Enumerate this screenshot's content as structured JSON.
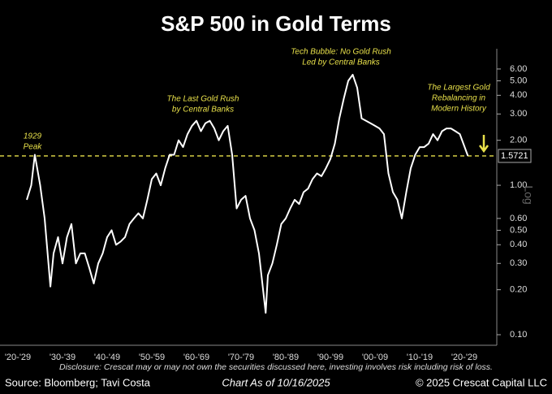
{
  "chart_data": {
    "type": "line",
    "title": "S&P 500 in Gold Terms",
    "x": [
      1927,
      1928,
      1928.8,
      1930,
      1931,
      1932.3,
      1933,
      1934,
      1935,
      1936,
      1937,
      1938,
      1939,
      1940,
      1941,
      1942,
      1943,
      1944,
      1945,
      1946,
      1947,
      1948,
      1949,
      1950,
      1951,
      1952,
      1953,
      1954,
      1955,
      1956,
      1957,
      1958,
      1959,
      1960,
      1961,
      1962,
      1963,
      1964,
      1965,
      1966,
      1967,
      1968,
      1969,
      1970,
      1971,
      1972,
      1973,
      1974,
      1975,
      1976,
      1977,
      1978,
      1979,
      1980.5,
      1981,
      1982,
      1983,
      1984,
      1985,
      1986,
      1987,
      1988,
      1989,
      1990,
      1991,
      1992,
      1993,
      1994,
      1995,
      1996,
      1997,
      1998,
      1999,
      2000,
      2001,
      2002,
      2003,
      2004,
      2005,
      2006,
      2007,
      2008,
      2009,
      2010,
      2011,
      2012,
      2013,
      2014,
      2015,
      2016,
      2017,
      2018,
      2019,
      2020,
      2021,
      2022,
      2023,
      2024,
      2025.8
    ],
    "values": [
      0.8,
      1.0,
      1.6,
      1.0,
      0.6,
      0.21,
      0.35,
      0.45,
      0.3,
      0.45,
      0.55,
      0.3,
      0.35,
      0.35,
      0.28,
      0.22,
      0.3,
      0.35,
      0.45,
      0.5,
      0.4,
      0.42,
      0.45,
      0.55,
      0.6,
      0.65,
      0.6,
      0.8,
      1.1,
      1.2,
      1.0,
      1.3,
      1.6,
      1.6,
      2.0,
      1.8,
      2.2,
      2.5,
      2.7,
      2.3,
      2.6,
      2.7,
      2.4,
      2.0,
      2.3,
      2.5,
      1.6,
      0.7,
      0.8,
      0.85,
      0.6,
      0.5,
      0.35,
      0.14,
      0.25,
      0.3,
      0.4,
      0.55,
      0.6,
      0.7,
      0.8,
      0.75,
      0.9,
      0.95,
      1.1,
      1.2,
      1.15,
      1.3,
      1.5,
      1.9,
      2.8,
      3.8,
      5.0,
      5.5,
      4.5,
      2.8,
      2.7,
      2.6,
      2.5,
      2.4,
      2.2,
      1.2,
      0.9,
      0.8,
      0.6,
      0.9,
      1.3,
      1.6,
      1.8,
      1.8,
      1.9,
      2.2,
      2.0,
      2.3,
      2.4,
      2.4,
      2.3,
      2.2,
      1.5721
    ],
    "color": "#ffffff",
    "xlim": [
      1921,
      2032
    ],
    "xticks": [
      {
        "value": 1925,
        "label": "'20-'29"
      },
      {
        "value": 1935,
        "label": "'30-'39"
      },
      {
        "value": 1945,
        "label": "'40-'49"
      },
      {
        "value": 1955,
        "label": "'50-'59"
      },
      {
        "value": 1965,
        "label": "'60-'69"
      },
      {
        "value": 1975,
        "label": "'70-'79"
      },
      {
        "value": 1985,
        "label": "'80-'89"
      },
      {
        "value": 1995,
        "label": "'90-'99"
      },
      {
        "value": 2005,
        "label": "'00-'09"
      },
      {
        "value": 2015,
        "label": "'10-'19"
      },
      {
        "value": 2025,
        "label": "'20-'29"
      }
    ],
    "ylim": [
      0.085,
      7.7
    ],
    "log_scale": true,
    "y_axis_side": "right",
    "y_axis_label": "Log",
    "yticks": [
      {
        "value": 0.1,
        "label": "0.10"
      },
      {
        "value": 0.2,
        "label": "0.20"
      },
      {
        "value": 0.3,
        "label": "0.30"
      },
      {
        "value": 0.4,
        "label": "0.40"
      },
      {
        "value": 0.5,
        "label": "0.50"
      },
      {
        "value": 0.6,
        "label": "0.60"
      },
      {
        "value": 1,
        "label": "1.00"
      },
      {
        "value": 2,
        "label": "2.00"
      },
      {
        "value": 3,
        "label": "3.00"
      },
      {
        "value": 4,
        "label": "4.00"
      },
      {
        "value": 5,
        "label": "5.00"
      },
      {
        "value": 6,
        "label": "6.00"
      }
    ],
    "reference_line": {
      "value": 1.5721,
      "color": "#e8e04a"
    },
    "annotations": [
      {
        "lines": [
          "1929",
          "Peak"
        ]
      },
      {
        "lines": [
          "The Last Gold Rush",
          "by Central Banks"
        ]
      },
      {
        "lines": [
          "Tech Bubble: No Gold Rush",
          "Led by Central Banks"
        ]
      },
      {
        "lines": [
          "The Largest Gold",
          "Rebalancing in",
          "Modern History"
        ]
      }
    ],
    "disclosure": "Disclosure: Crescat may or may not own the securities discussed here, investing involves risk including risk of loss.",
    "source": "Source: Bloomberg; Tavi Costa",
    "date_note": "Chart As of 10/16/2025",
    "copyright": "© 2025 Crescat Capital LLC"
  }
}
